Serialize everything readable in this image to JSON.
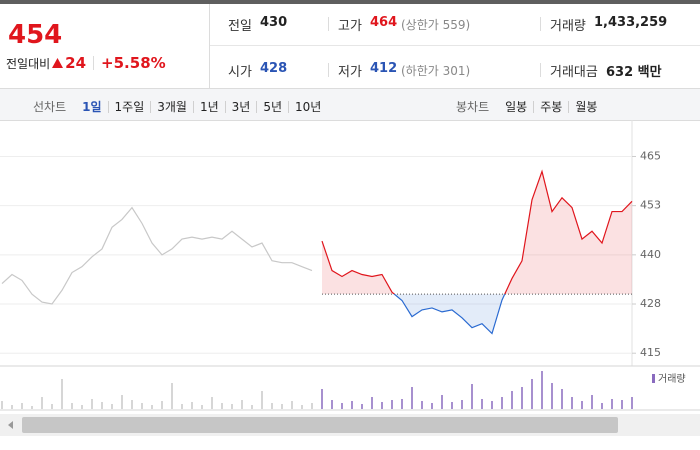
{
  "quote": {
    "price": 454,
    "change_label": "전일대비",
    "change": 24,
    "change_rate": "+5.58%"
  },
  "info": [
    {
      "label": "전일",
      "value": 430,
      "color": "#222222"
    },
    {
      "label": "고가",
      "value": 464,
      "note": "(상한가 559)",
      "color": "#e0161d"
    },
    {
      "label": "거래량",
      "value": "1,433,259",
      "color": "#222222"
    },
    {
      "label": "시가",
      "value": 428,
      "color": "#2a54b4"
    },
    {
      "label": "저가",
      "value": 412,
      "note": "(하한가 301)",
      "color": "#2a54b4"
    },
    {
      "label": "거래대금",
      "value": "632 백만",
      "color": "#222222"
    }
  ],
  "line_tabs": {
    "label": "선차트",
    "items": [
      "1일",
      "1주일",
      "3개월",
      "1년",
      "3년",
      "5년",
      "10년"
    ],
    "active": 0
  },
  "candle_tabs": {
    "label": "봉차트",
    "items": [
      "일봉",
      "주봉",
      "월봉"
    ]
  },
  "chart_data": {
    "type": "line",
    "categories": [
      null,
      null,
      null,
      null,
      null,
      null,
      null,
      null,
      null,
      null,
      null,
      null,
      null,
      null,
      null,
      null,
      null,
      null,
      null,
      null,
      null,
      null,
      null,
      null,
      null,
      null,
      null,
      null,
      null,
      null,
      null,
      null,
      null,
      null,
      null,
      null,
      null,
      null,
      null,
      null,
      null,
      null,
      null,
      null,
      null,
      null,
      null,
      null,
      null,
      null,
      null,
      null,
      null,
      null,
      null,
      null,
      null,
      null,
      null,
      null,
      null,
      null,
      null,
      null
    ],
    "series": [
      {
        "color": "#c8c8c8",
        "values": [
          432.7,
          435,
          433.5,
          430,
          428,
          427.5,
          431,
          435.5,
          437,
          439.5,
          441.5,
          447,
          449,
          452,
          448,
          443,
          440,
          441.5,
          444,
          444.5,
          444,
          444.5,
          444,
          446,
          444,
          442,
          443,
          438.5,
          438,
          438,
          437,
          436,
          null,
          null,
          null,
          null,
          null,
          null,
          null,
          null,
          null,
          null,
          null,
          null,
          null,
          null,
          null,
          null,
          null,
          null,
          null,
          null,
          null,
          null,
          null,
          null,
          null,
          null,
          null,
          null,
          null,
          null,
          null,
          null
        ]
      },
      {
        "color": "#e0161d",
        "color_down": "#2a6ad1",
        "values": [
          null,
          null,
          null,
          null,
          null,
          null,
          null,
          null,
          null,
          null,
          null,
          null,
          null,
          null,
          null,
          null,
          null,
          null,
          null,
          null,
          null,
          null,
          null,
          null,
          null,
          null,
          null,
          null,
          null,
          null,
          null,
          null,
          443.5,
          436,
          434.5,
          436,
          435,
          434.5,
          435,
          430.5,
          428.4,
          424.3,
          426,
          426.5,
          425.5,
          426,
          424,
          421.5,
          422.5,
          420,
          428.5,
          434,
          438.5,
          454,
          461.2,
          451,
          454.5,
          452,
          444,
          446,
          443,
          451,
          451,
          453.6
        ]
      }
    ],
    "ylim": [
      412,
      473
    ],
    "yticks": [
      415,
      {
        "value": 427.5,
        "label": "428"
      },
      440,
      {
        "value": 452.5,
        "label": "453"
      },
      465
    ],
    "grid": true,
    "volume": {
      "name": "거래량",
      "color": "#8a6bbf",
      "prev_color": "#c8c8c8",
      "values": [
        8,
        4,
        6,
        3,
        12,
        5,
        30,
        6,
        4,
        10,
        7,
        5,
        14,
        9,
        6,
        4,
        8,
        26,
        5,
        7,
        4,
        12,
        6,
        5,
        9,
        4,
        18,
        6,
        5,
        8,
        4,
        6,
        20,
        9,
        6,
        8,
        5,
        12,
        7,
        9,
        10,
        22,
        8,
        6,
        14,
        7,
        9,
        25,
        10,
        8,
        12,
        18,
        22,
        30,
        38,
        26,
        20,
        12,
        8,
        14,
        6,
        10,
        9,
        12
      ]
    }
  }
}
